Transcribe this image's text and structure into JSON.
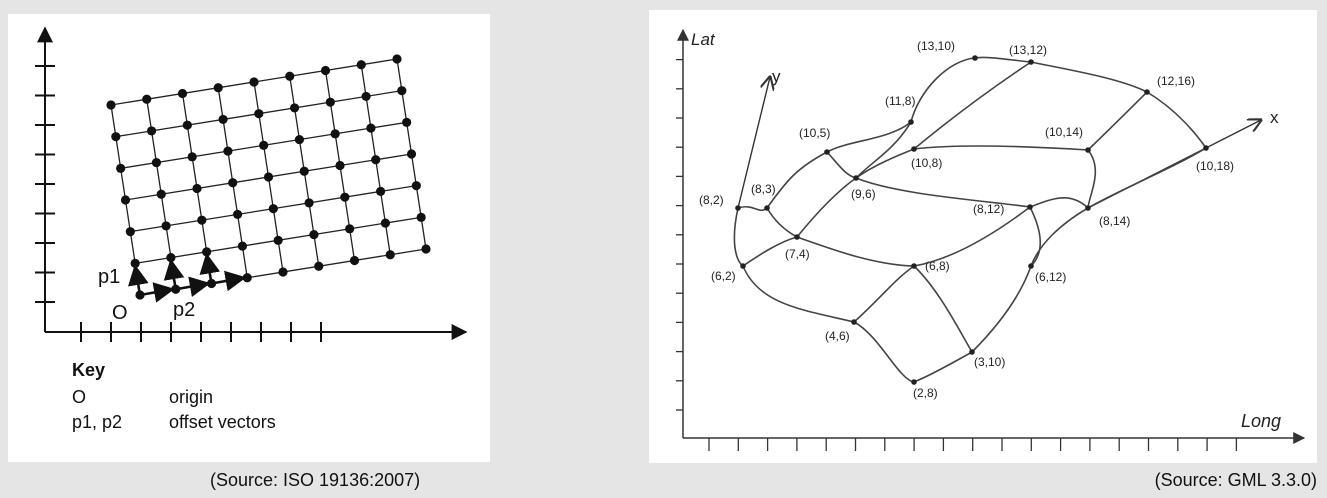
{
  "left": {
    "labels": {
      "origin": "O",
      "p1": "p1",
      "p2": "p2"
    },
    "key": {
      "title": "Key",
      "rows": [
        {
          "term": "O",
          "desc": "origin"
        },
        {
          "term": "p1, p2",
          "desc": "offset vectors"
        }
      ]
    },
    "caption": "(Source: ISO 19136:2007)",
    "grid": {
      "columns": 8,
      "rows": 6
    }
  },
  "right": {
    "axes": {
      "y_label": "Lat",
      "x_label": "Long"
    },
    "local_axes": {
      "x": "x",
      "y": "y"
    },
    "caption": "(Source: GML 3.3.0)",
    "points": [
      {
        "id": "p82",
        "label": "(8,2)"
      },
      {
        "id": "p83",
        "label": "(8,3)"
      },
      {
        "id": "p105",
        "label": "(10,5)"
      },
      {
        "id": "p118",
        "label": "(11,8)"
      },
      {
        "id": "p1310",
        "label": "(13,10)"
      },
      {
        "id": "p1312",
        "label": "(13,12)"
      },
      {
        "id": "p1216",
        "label": "(12,16)"
      },
      {
        "id": "p1018",
        "label": "(10,18)"
      },
      {
        "id": "p1014",
        "label": "(10,14)"
      },
      {
        "id": "p108",
        "label": "(10,8)"
      },
      {
        "id": "p96",
        "label": "(9,6)"
      },
      {
        "id": "p812",
        "label": "(8,12)"
      },
      {
        "id": "p814",
        "label": "(8,14)"
      },
      {
        "id": "p74",
        "label": "(7,4)"
      },
      {
        "id": "p62",
        "label": "(6,2)"
      },
      {
        "id": "p68",
        "label": "(6,8)"
      },
      {
        "id": "p612",
        "label": "(6,12)"
      },
      {
        "id": "p46",
        "label": "(4,6)"
      },
      {
        "id": "p310",
        "label": "(3,10)"
      },
      {
        "id": "p28",
        "label": "(2,8)"
      }
    ]
  }
}
